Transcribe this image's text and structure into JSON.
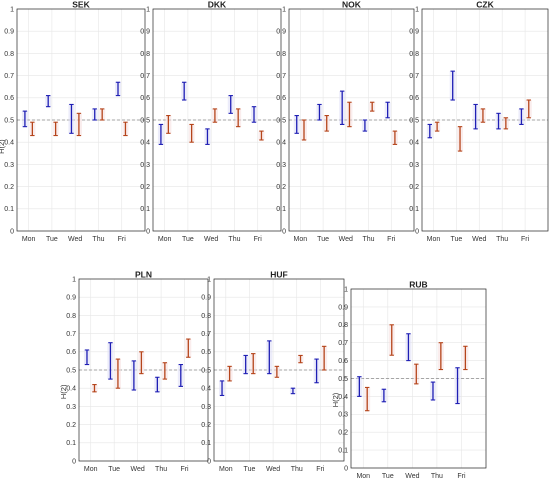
{
  "chart_data": [
    {
      "type": "errorbar",
      "title": "SEK",
      "ylabel": "H(2)",
      "categories": [
        "Mon",
        "Tue",
        "Wed",
        "Thu",
        "Fri"
      ],
      "ylim": [
        0,
        1
      ],
      "yticks": [
        0,
        0.1,
        0.2,
        0.3,
        0.4,
        0.5,
        0.6,
        0.7,
        0.8,
        0.9,
        1
      ],
      "reference_line": 0.5,
      "grid": true,
      "series": [
        {
          "color": "#1f1fb4",
          "intervals": [
            [
              0.47,
              0.54
            ],
            [
              0.56,
              0.61
            ],
            [
              0.44,
              0.57
            ],
            [
              0.5,
              0.55
            ],
            [
              0.61,
              0.67
            ]
          ]
        },
        {
          "color": "#b5451b",
          "intervals": [
            [
              0.43,
              0.49
            ],
            [
              0.43,
              0.49
            ],
            [
              0.43,
              0.53
            ],
            [
              0.5,
              0.55
            ],
            [
              0.43,
              0.49
            ]
          ]
        }
      ]
    },
    {
      "type": "errorbar",
      "title": "DKK",
      "ylabel": "",
      "categories": [
        "Mon",
        "Tue",
        "Wed",
        "Thu",
        "Fri"
      ],
      "ylim": [
        0,
        1
      ],
      "yticks": [
        0,
        0.1,
        0.2,
        0.3,
        0.4,
        0.5,
        0.6,
        0.7,
        0.8,
        0.9,
        1
      ],
      "reference_line": 0.5,
      "grid": true,
      "series": [
        {
          "color": "#1f1fb4",
          "intervals": [
            [
              0.39,
              0.48
            ],
            [
              0.59,
              0.67
            ],
            [
              0.39,
              0.46
            ],
            [
              0.53,
              0.61
            ],
            [
              0.49,
              0.56
            ]
          ]
        },
        {
          "color": "#b5451b",
          "intervals": [
            [
              0.44,
              0.52
            ],
            [
              0.4,
              0.48
            ],
            [
              0.49,
              0.55
            ],
            [
              0.47,
              0.55
            ],
            [
              0.41,
              0.45
            ]
          ]
        }
      ]
    },
    {
      "type": "errorbar",
      "title": "NOK",
      "ylabel": "",
      "categories": [
        "Mon",
        "Tue",
        "Wed",
        "Thu",
        "Fri"
      ],
      "ylim": [
        0,
        1
      ],
      "yticks": [
        0,
        0.1,
        0.2,
        0.3,
        0.4,
        0.5,
        0.6,
        0.7,
        0.8,
        0.9,
        1
      ],
      "reference_line": 0.5,
      "grid": true,
      "series": [
        {
          "color": "#1f1fb4",
          "intervals": [
            [
              0.44,
              0.52
            ],
            [
              0.5,
              0.57
            ],
            [
              0.48,
              0.63
            ],
            [
              0.45,
              0.5
            ],
            [
              0.51,
              0.58
            ]
          ]
        },
        {
          "color": "#b5451b",
          "intervals": [
            [
              0.41,
              0.5
            ],
            [
              0.45,
              0.52
            ],
            [
              0.47,
              0.58
            ],
            [
              0.54,
              0.58
            ],
            [
              0.39,
              0.45
            ]
          ]
        }
      ]
    },
    {
      "type": "errorbar",
      "title": "CZK",
      "ylabel": "",
      "categories": [
        "Mon",
        "Tue",
        "Wed",
        "Thu",
        "Fri"
      ],
      "ylim": [
        0,
        1
      ],
      "yticks": [
        0,
        0.1,
        0.2,
        0.3,
        0.4,
        0.5,
        0.6,
        0.7,
        0.8,
        0.9,
        1
      ],
      "reference_line": 0.5,
      "grid": true,
      "series": [
        {
          "color": "#1f1fb4",
          "intervals": [
            [
              0.42,
              0.48
            ],
            [
              0.59,
              0.72
            ],
            [
              0.46,
              0.57
            ],
            [
              0.46,
              0.53
            ],
            [
              0.48,
              0.55
            ]
          ]
        },
        {
          "color": "#b5451b",
          "intervals": [
            [
              0.45,
              0.49
            ],
            [
              0.36,
              0.47
            ],
            [
              0.49,
              0.55
            ],
            [
              0.46,
              0.51
            ],
            [
              0.51,
              0.59
            ]
          ]
        }
      ]
    },
    {
      "type": "errorbar",
      "title": "PLN",
      "ylabel": "H(2)",
      "categories": [
        "Mon",
        "Tue",
        "Wed",
        "Thu",
        "Fri"
      ],
      "ylim": [
        0,
        1
      ],
      "yticks": [
        0,
        0.1,
        0.2,
        0.3,
        0.4,
        0.5,
        0.6,
        0.7,
        0.8,
        0.9,
        1
      ],
      "reference_line": 0.5,
      "grid": true,
      "series": [
        {
          "color": "#1f1fb4",
          "intervals": [
            [
              0.53,
              0.61
            ],
            [
              0.45,
              0.65
            ],
            [
              0.39,
              0.55
            ],
            [
              0.38,
              0.46
            ],
            [
              0.41,
              0.53
            ]
          ]
        },
        {
          "color": "#b5451b",
          "intervals": [
            [
              0.38,
              0.42
            ],
            [
              0.4,
              0.56
            ],
            [
              0.48,
              0.6
            ],
            [
              0.45,
              0.54
            ],
            [
              0.57,
              0.67
            ]
          ]
        }
      ]
    },
    {
      "type": "errorbar",
      "title": "HUF",
      "ylabel": "",
      "categories": [
        "Mon",
        "Tue",
        "Wed",
        "Thu",
        "Fri"
      ],
      "ylim": [
        0,
        1
      ],
      "yticks": [
        0,
        0.1,
        0.2,
        0.3,
        0.4,
        0.5,
        0.6,
        0.7,
        0.8,
        0.9,
        1
      ],
      "reference_line": 0.5,
      "grid": true,
      "series": [
        {
          "color": "#1f1fb4",
          "intervals": [
            [
              0.36,
              0.44
            ],
            [
              0.48,
              0.58
            ],
            [
              0.48,
              0.66
            ],
            [
              0.37,
              0.4
            ],
            [
              0.43,
              0.56
            ]
          ]
        },
        {
          "color": "#b5451b",
          "intervals": [
            [
              0.44,
              0.52
            ],
            [
              0.48,
              0.59
            ],
            [
              0.46,
              0.52
            ],
            [
              0.54,
              0.58
            ],
            [
              0.5,
              0.63
            ]
          ]
        }
      ]
    },
    {
      "type": "errorbar",
      "title": "RUB",
      "ylabel": "H(2)",
      "categories": [
        "Mon",
        "Tue",
        "Wed",
        "Thu",
        "Fri"
      ],
      "ylim": [
        0,
        1
      ],
      "yticks": [
        0,
        0.1,
        0.2,
        0.3,
        0.4,
        0.5,
        0.6,
        0.7,
        0.8,
        0.9,
        1
      ],
      "reference_line": 0.5,
      "grid": true,
      "series": [
        {
          "color": "#1f1fb4",
          "intervals": [
            [
              0.4,
              0.51
            ],
            [
              0.37,
              0.44
            ],
            [
              0.6,
              0.75
            ],
            [
              0.38,
              0.48
            ],
            [
              0.36,
              0.56
            ]
          ]
        },
        {
          "color": "#b5451b",
          "intervals": [
            [
              0.32,
              0.45
            ],
            [
              0.63,
              0.8
            ],
            [
              0.47,
              0.58
            ],
            [
              0.55,
              0.7
            ],
            [
              0.55,
              0.68
            ]
          ]
        }
      ]
    }
  ]
}
